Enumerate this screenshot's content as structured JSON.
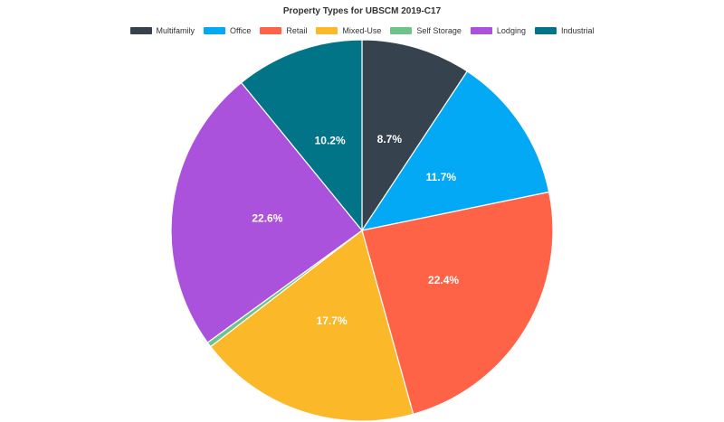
{
  "chart_data": {
    "type": "pie",
    "title": "Property Types for UBSCM 2019-C17",
    "categories": [
      "Multifamily",
      "Office",
      "Retail",
      "Mixed-Use",
      "Self Storage",
      "Lodging",
      "Industrial"
    ],
    "values": [
      8.7,
      11.7,
      22.4,
      17.7,
      0.4,
      22.6,
      10.2
    ],
    "labels": [
      "8.7%",
      "11.7%",
      "22.4%",
      "17.7%",
      "",
      "22.6%",
      "10.2%"
    ],
    "colors": [
      "#36434f",
      "#03a9f4",
      "#ff6347",
      "#fbb829",
      "#6cc48a",
      "#ab52dc",
      "#027488"
    ],
    "legend_position": "top-center"
  }
}
